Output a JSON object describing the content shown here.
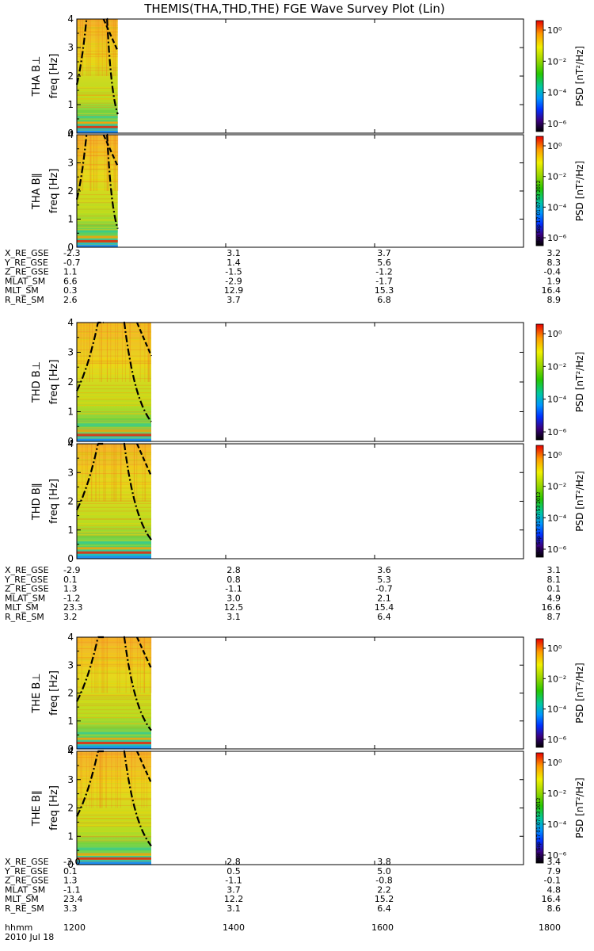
{
  "title": "THEMIS(THA,THD,THE) FGE Wave Survey Plot (Lin)",
  "colorbar": {
    "label": "PSD [nT²/Hz]",
    "ticks": [
      "10⁰",
      "10⁻²",
      "10⁻⁴",
      "10⁻⁶"
    ],
    "colors": [
      "#e80000",
      "#ff9a00",
      "#f0f000",
      "#9ad600",
      "#26c800",
      "#00c8a0",
      "#0096ff",
      "#0030ff",
      "#3a0080",
      "#000000"
    ]
  },
  "stamp": "Mon Sep 17 01:07:53 2012",
  "chart_data": {
    "type": "heatmap",
    "ylabel_unit": "freq [Hz]",
    "ylim": [
      0,
      4
    ],
    "yticks": [
      "0",
      "1",
      "2",
      "3",
      "4"
    ],
    "xticks": [
      "1200",
      "1400",
      "1600",
      "1800"
    ],
    "time_label": "hhmm",
    "date_label": "2010 Jul 18",
    "panels": [
      {
        "label": "THA B⊥",
        "data_end": "1255"
      },
      {
        "label": "THA B∥",
        "data_end": "1255",
        "stamp": true
      },
      {
        "label": "THD B⊥",
        "data_end": "1300"
      },
      {
        "label": "THD B∥",
        "data_end": "1300",
        "stamp": true
      },
      {
        "label": "THE B⊥",
        "data_end": "1300"
      },
      {
        "label": "THE B∥",
        "data_end": "1300",
        "stamp": true
      }
    ],
    "ephemeris": [
      {
        "probe": "THA",
        "rows": [
          {
            "name": "X_RE_GSE",
            "values": [
              "-2.3",
              "3.1",
              "3.7",
              "3.2"
            ]
          },
          {
            "name": "Y_RE_GSE",
            "values": [
              "-0.7",
              "1.4",
              "5.6",
              "8.3"
            ]
          },
          {
            "name": "Z_RE_GSE",
            "values": [
              "1.1",
              "-1.5",
              "-1.2",
              "-0.4"
            ]
          },
          {
            "name": "MLAT_SM",
            "values": [
              "6.6",
              "-2.9",
              "-1.7",
              "1.9"
            ]
          },
          {
            "name": "MLT_SM",
            "values": [
              "0.3",
              "12.9",
              "15.3",
              "16.4"
            ]
          },
          {
            "name": "R_RE_SM",
            "values": [
              "2.6",
              "3.7",
              "6.8",
              "8.9"
            ]
          }
        ]
      },
      {
        "probe": "THD",
        "rows": [
          {
            "name": "X_RE_GSE",
            "values": [
              "-2.9",
              "2.8",
              "3.6",
              "3.1"
            ]
          },
          {
            "name": "Y_RE_GSE",
            "values": [
              "0.1",
              "0.8",
              "5.3",
              "8.1"
            ]
          },
          {
            "name": "Z_RE_GSE",
            "values": [
              "1.3",
              "-1.1",
              "-0.7",
              "0.1"
            ]
          },
          {
            "name": "MLAT_SM",
            "values": [
              "-1.2",
              "3.0",
              "2.1",
              "4.9"
            ]
          },
          {
            "name": "MLT_SM",
            "values": [
              "23.3",
              "12.5",
              "15.4",
              "16.6"
            ]
          },
          {
            "name": "R_RE_SM",
            "values": [
              "3.2",
              "3.1",
              "6.4",
              "8.7"
            ]
          }
        ]
      },
      {
        "probe": "THE",
        "rows": [
          {
            "name": "X_RE_GSE",
            "values": [
              "-3.0",
              "2.8",
              "3.8",
              "3.4"
            ]
          },
          {
            "name": "Y_RE_GSE",
            "values": [
              "0.1",
              "0.5",
              "5.0",
              "7.9"
            ]
          },
          {
            "name": "Z_RE_GSE",
            "values": [
              "1.3",
              "-1.1",
              "-0.8",
              "-0.1"
            ]
          },
          {
            "name": "MLAT_SM",
            "values": [
              "-1.1",
              "3.7",
              "2.2",
              "4.8"
            ]
          },
          {
            "name": "MLT_SM",
            "values": [
              "23.4",
              "12.2",
              "15.2",
              "16.4"
            ]
          },
          {
            "name": "R_RE_SM",
            "values": [
              "3.3",
              "3.1",
              "6.4",
              "8.6"
            ]
          }
        ]
      }
    ]
  }
}
